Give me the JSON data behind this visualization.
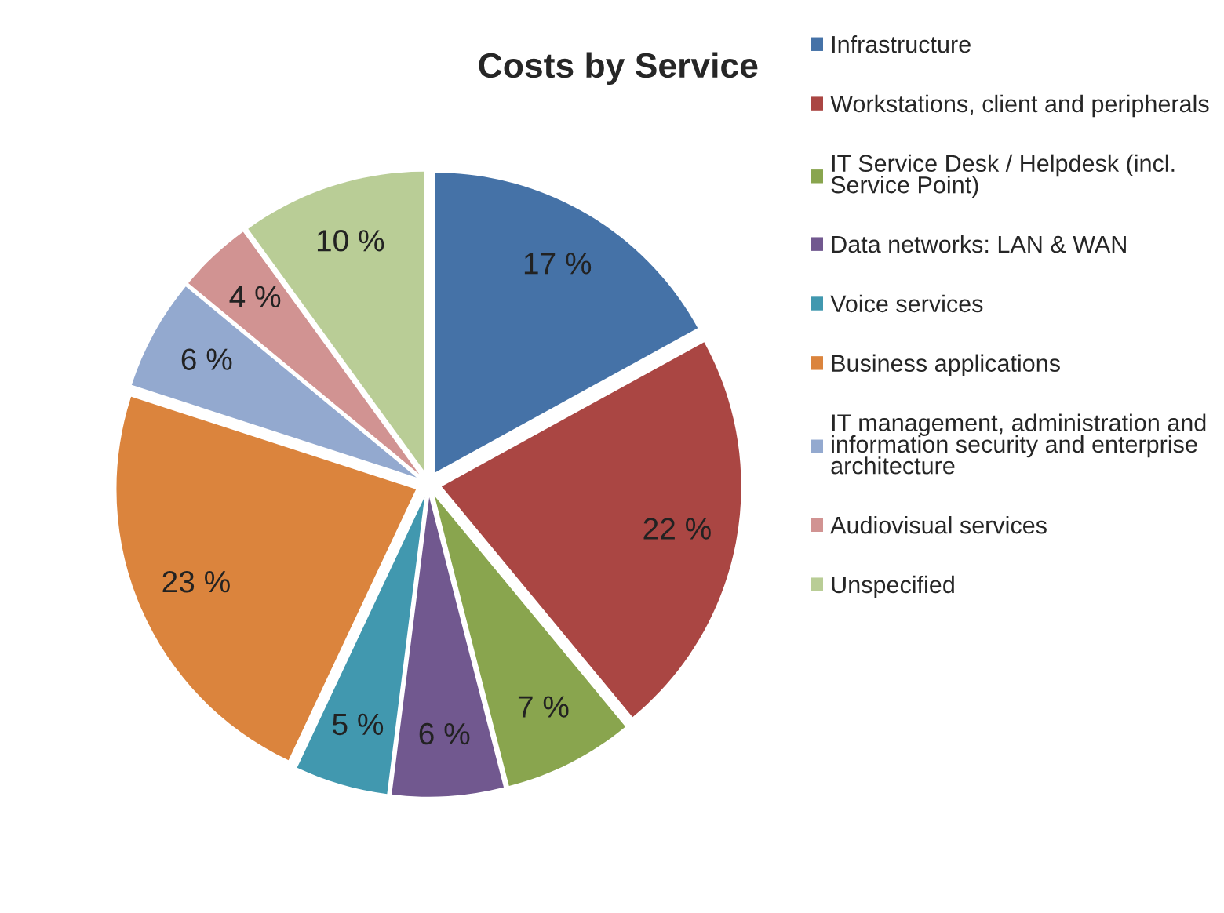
{
  "chart_data": {
    "type": "pie",
    "title": "Costs by Service",
    "categories": [
      "Infrastructure",
      "Workstations, client and peripherals",
      "IT Service Desk / Helpdesk (incl.\nService Point)",
      "Data networks: LAN & WAN",
      "Voice services",
      "Business applications",
      "IT management, administration and\ninformation security and enterprise\narchitecture",
      "Audiovisual services",
      "Unspecified"
    ],
    "values": [
      17,
      22,
      7,
      6,
      5,
      23,
      6,
      4,
      10
    ],
    "value_labels": [
      "17 %",
      "22 %",
      "7 %",
      "6 %",
      "5 %",
      "23 %",
      "6 %",
      "4 %",
      "10 %"
    ],
    "colors": [
      "#4572a7",
      "#aa4643",
      "#89a54e",
      "#71588f",
      "#4198af",
      "#db843d",
      "#93a9cf",
      "#d19392",
      "#b9cd96"
    ],
    "legend": "right"
  }
}
